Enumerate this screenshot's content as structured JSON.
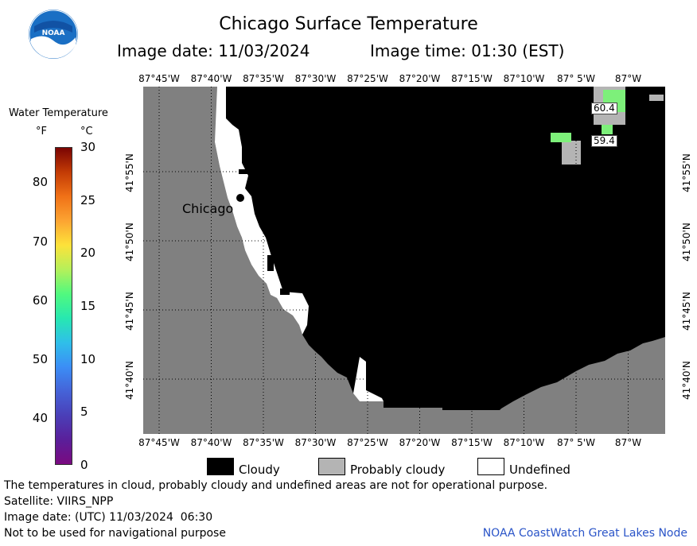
{
  "header": {
    "title": "Chicago Surface Temperature",
    "image_date": "Image date: 11/03/2024",
    "image_time": "Image time: 01:30 (EST)"
  },
  "logo": {
    "name": "noaa-logo",
    "text": "NOAA"
  },
  "legend": {
    "title": "Water Temperature",
    "unit_f": "°F",
    "unit_c": "°C",
    "f_ticks": [
      "80",
      "70",
      "60",
      "50",
      "40"
    ],
    "c_ticks": [
      "30",
      "25",
      "20",
      "15",
      "10",
      "5",
      "0"
    ],
    "colors": [
      "#7a0403",
      "#c33b05",
      "#f07117",
      "#fca432",
      "#fde23a",
      "#b5f05a",
      "#51f97e",
      "#27e8b0",
      "#2fbfe9",
      "#3b8ef6",
      "#4563d8",
      "#4a3fb8",
      "#5a1f9a",
      "#7a0a80"
    ]
  },
  "map": {
    "top_lon_labels": [
      "87°45'W",
      "87°40'W",
      "87°35'W",
      "87°30'W",
      "87°25'W",
      "87°20'W",
      "87°15'W",
      "87°10'W",
      "87° 5'W",
      "87°W"
    ],
    "bottom_lon_labels": [
      "87°45'W",
      "87°40'W",
      "87°35'W",
      "87°30'W",
      "87°25'W",
      "87°20'W",
      "87°15'W",
      "87°10'W",
      "87° 5'W",
      "87°W"
    ],
    "lat_labels": [
      "41°55'N",
      "41°50'N",
      "41°45'N",
      "41°40'N"
    ],
    "city_label": "Chicago",
    "values": [
      {
        "id": "value-60-4",
        "text": "60.4",
        "temp_f": 60.4
      },
      {
        "id": "value-59-4",
        "text": "59.4",
        "temp_f": 59.4
      }
    ],
    "colors": {
      "land": "#808080",
      "cloudy": "#000000",
      "probably_cloudy": "#b4b4b4",
      "undefined": "#ffffff",
      "warm_water": "#7df07a"
    }
  },
  "key": {
    "cloudy": "Cloudy",
    "probably_cloudy": "Probably cloudy",
    "undefined": "Undefined"
  },
  "footer": {
    "disclaimer": "The temperatures in cloud, probably cloudy and undefined areas are not for operational purpose.",
    "satellite": "Satellite: VIIRS_NPP",
    "utc_date": "Image date: (UTC) 11/03/2024  06:30",
    "nav_warning": "Not to be used for navigational purpose",
    "credit": "NOAA CoastWatch Great Lakes Node"
  }
}
